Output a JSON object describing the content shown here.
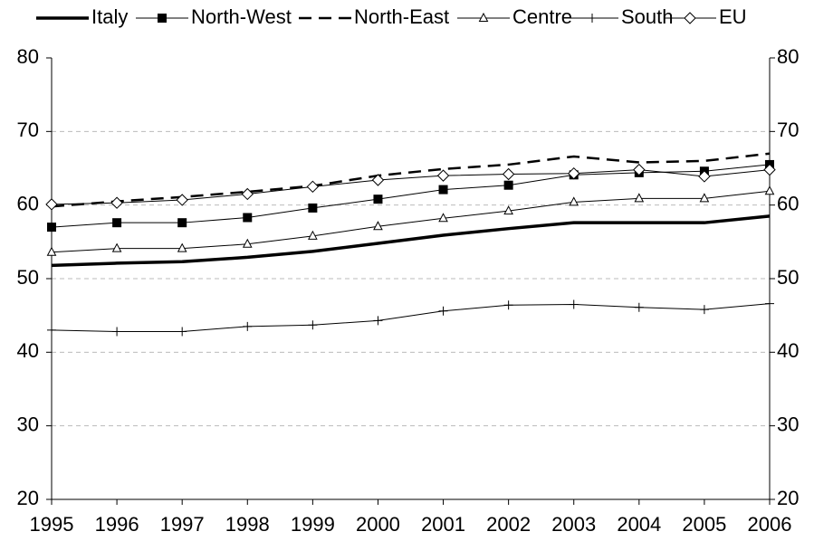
{
  "chart_data": {
    "type": "line",
    "categories": [
      "1995",
      "1996",
      "1997",
      "1998",
      "1999",
      "2000",
      "2001",
      "2002",
      "2003",
      "2004",
      "2005",
      "2006"
    ],
    "series": [
      {
        "name": "Italy",
        "color": "#000000",
        "line_width": 3.5,
        "dash": false,
        "marker": "none",
        "values": [
          51.8,
          52.1,
          52.3,
          52.9,
          53.7,
          54.8,
          55.9,
          56.8,
          57.6,
          57.6,
          57.6,
          58.5
        ]
      },
      {
        "name": "North-West",
        "color": "#000000",
        "line_width": 1,
        "dash": false,
        "marker": "square",
        "values": [
          57.0,
          57.6,
          57.6,
          58.3,
          59.6,
          60.8,
          62.1,
          62.7,
          64.1,
          64.4,
          64.6,
          65.5
        ]
      },
      {
        "name": "North-East",
        "color": "#000000",
        "line_width": 2.5,
        "dash": true,
        "marker": "none",
        "values": [
          59.8,
          60.5,
          61.1,
          61.8,
          62.6,
          64.0,
          64.9,
          65.5,
          66.6,
          65.8,
          66.0,
          67.0
        ]
      },
      {
        "name": "Centre",
        "color": "#000000",
        "line_width": 1,
        "dash": false,
        "marker": "triangle",
        "values": [
          53.6,
          54.1,
          54.1,
          54.7,
          55.8,
          57.1,
          58.2,
          59.2,
          60.4,
          60.9,
          60.9,
          61.9
        ]
      },
      {
        "name": "South",
        "color": "#000000",
        "line_width": 1,
        "dash": false,
        "marker": "plus",
        "values": [
          43.0,
          42.8,
          42.8,
          43.5,
          43.7,
          44.3,
          45.6,
          46.4,
          46.5,
          46.1,
          45.8,
          46.6
        ]
      },
      {
        "name": "EU",
        "color": "#000000",
        "line_width": 1,
        "dash": false,
        "marker": "diamond",
        "values": [
          60.1,
          60.3,
          60.7,
          61.5,
          62.5,
          63.4,
          64.0,
          64.2,
          64.3,
          64.8,
          63.9,
          64.8
        ]
      }
    ],
    "ylim": [
      20,
      80
    ],
    "yticks": [
      20,
      30,
      40,
      50,
      60,
      70,
      80
    ],
    "y2lim": [
      20,
      80
    ],
    "y2ticks": [
      20,
      30,
      40,
      50,
      60,
      70,
      80
    ],
    "grid": true,
    "legend": "top"
  }
}
